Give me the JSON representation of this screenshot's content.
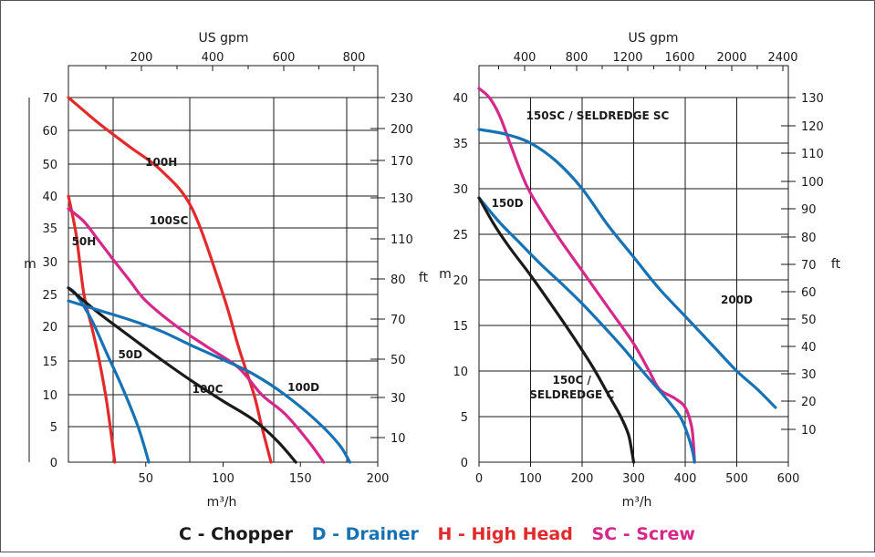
{
  "colors": {
    "chopper": "#1a1a1a",
    "drainer": "#1772b5",
    "high_head": "#e22a2a",
    "screw": "#d6278a"
  },
  "legend": [
    {
      "text": "C - Chopper",
      "color": "#1a1a1a"
    },
    {
      "text": "D - Drainer",
      "color": "#1772b5"
    },
    {
      "text": "H - High Head",
      "color": "#e22a2a"
    },
    {
      "text": "SC - Screw",
      "color": "#d6278a"
    }
  ],
  "chart_data": [
    {
      "type": "line",
      "xlabel": "m³/h",
      "x2label": "US gpm",
      "ylabel": "m",
      "y2label": "ft",
      "xlim": [
        0,
        200
      ],
      "ylim": [
        0,
        70
      ],
      "xticks": [
        50,
        100,
        150,
        200
      ],
      "yticks": [
        0,
        5,
        10,
        15,
        20,
        25,
        30,
        35,
        40,
        50,
        60,
        70
      ],
      "x2ticks": [
        200,
        400,
        600,
        800
      ],
      "y2ticks": [
        10,
        30,
        50,
        70,
        80,
        110,
        130,
        170,
        200,
        230
      ],
      "grid": true,
      "series": [
        {
          "name": "100H",
          "color": "#e22a2a",
          "label_at": [
            60,
            0.812
          ],
          "points": [
            [
              0,
              70
            ],
            [
              20,
              62
            ],
            [
              40,
              55
            ],
            [
              60,
              48
            ],
            [
              80,
              38
            ],
            [
              100,
              25
            ],
            [
              110,
              17
            ],
            [
              120,
              10
            ],
            [
              125,
              5
            ],
            [
              131,
              0
            ]
          ]
        },
        {
          "name": "50H",
          "color": "#e22a2a",
          "label_at": [
            10,
            0.595
          ],
          "points": [
            [
              0,
              40
            ],
            [
              5,
              34
            ],
            [
              10,
              25
            ],
            [
              15,
              20
            ],
            [
              20,
              15
            ],
            [
              24,
              10
            ],
            [
              27,
              5
            ],
            [
              30,
              0
            ]
          ]
        },
        {
          "name": "100SC",
          "color": "#d6278a",
          "label_at": [
            65,
            0.653
          ],
          "points": [
            [
              0,
              38
            ],
            [
              10,
              36
            ],
            [
              20,
              33
            ],
            [
              30,
              30
            ],
            [
              40,
              27
            ],
            [
              50,
              24
            ],
            [
              70,
              20
            ],
            [
              90,
              17
            ],
            [
              110,
              14
            ],
            [
              125,
              10
            ],
            [
              140,
              7
            ],
            [
              155,
              3
            ],
            [
              165,
              0
            ]
          ]
        },
        {
          "name": "50D",
          "color": "#1772b5",
          "label_at": [
            40,
            0.285
          ],
          "points": [
            [
              0,
              26
            ],
            [
              5,
              25
            ],
            [
              15,
              21
            ],
            [
              25,
              16
            ],
            [
              35,
              11
            ],
            [
              45,
              5
            ],
            [
              52,
              0
            ]
          ]
        },
        {
          "name": "100C",
          "color": "#1a1a1a",
          "label_at": [
            90,
            0.19
          ],
          "points": [
            [
              0,
              26
            ],
            [
              10,
              24
            ],
            [
              20,
              22
            ],
            [
              40,
              18.5
            ],
            [
              60,
              15.2
            ],
            [
              80,
              12
            ],
            [
              100,
              9
            ],
            [
              120,
              6
            ],
            [
              135,
              3
            ],
            [
              147,
              0
            ]
          ]
        },
        {
          "name": "100D",
          "color": "#1772b5",
          "label_at": [
            152,
            0.195
          ],
          "points": [
            [
              0,
              24
            ],
            [
              20,
              22.5
            ],
            [
              40,
              21
            ],
            [
              60,
              19.3
            ],
            [
              80,
              17.2
            ],
            [
              100,
              15.2
            ],
            [
              120,
              13
            ],
            [
              140,
              10
            ],
            [
              160,
              6
            ],
            [
              175,
              2.5
            ],
            [
              182,
              0
            ]
          ]
        }
      ]
    },
    {
      "type": "line",
      "xlabel": "m³/h",
      "x2label": "US gpm",
      "ylabel": "m",
      "y2label": "ft",
      "xlim": [
        0,
        600
      ],
      "ylim": [
        0,
        40
      ],
      "xticks": [
        0,
        100,
        200,
        300,
        400,
        500,
        600
      ],
      "yticks": [
        0,
        5,
        10,
        15,
        20,
        25,
        30,
        35,
        40
      ],
      "x2ticks": [
        400,
        800,
        1200,
        1600,
        2000,
        2400
      ],
      "y2ticks": [
        10,
        20,
        30,
        40,
        50,
        60,
        70,
        80,
        90,
        100,
        110,
        120,
        130
      ],
      "grid": true,
      "series": [
        {
          "name": "150SC / SELDREDGE SC",
          "color": "#d6278a",
          "label_at": [
            230,
            0.94
          ],
          "points": [
            [
              0,
              41
            ],
            [
              20,
              40
            ],
            [
              40,
              38
            ],
            [
              60,
              35
            ],
            [
              80,
              32
            ],
            [
              100,
              29.5
            ],
            [
              150,
              25
            ],
            [
              200,
              21
            ],
            [
              250,
              17
            ],
            [
              300,
              13
            ],
            [
              330,
              10
            ],
            [
              350,
              8
            ],
            [
              380,
              7
            ],
            [
              400,
              6
            ],
            [
              412,
              4
            ],
            [
              416,
              2
            ],
            [
              418,
              0
            ]
          ]
        },
        {
          "name": "150D",
          "color": "#1772b5",
          "label_at": [
            55,
            0.7
          ],
          "points": [
            [
              0,
              29
            ],
            [
              40,
              26.3
            ],
            [
              80,
              24
            ],
            [
              120,
              21.7
            ],
            [
              160,
              19.6
            ],
            [
              200,
              17.4
            ],
            [
              240,
              15
            ],
            [
              280,
              12.5
            ],
            [
              320,
              9.8
            ],
            [
              360,
              7.2
            ],
            [
              390,
              5
            ],
            [
              405,
              3
            ],
            [
              415,
              1
            ],
            [
              418,
              0
            ]
          ]
        },
        {
          "name": "150C / SELDREDGE C",
          "color": "#1a1a1a",
          "label_at": [
            180,
            0.215
          ],
          "points": [
            [
              0,
              29
            ],
            [
              30,
              26
            ],
            [
              60,
              23.5
            ],
            [
              100,
              20.5
            ],
            [
              140,
              17.3
            ],
            [
              180,
              14
            ],
            [
              220,
              10.5
            ],
            [
              250,
              7.5
            ],
            [
              275,
              5
            ],
            [
              290,
              3
            ],
            [
              297,
              1
            ],
            [
              300,
              0
            ]
          ]
        },
        {
          "name": "200D",
          "color": "#1772b5",
          "label_at": [
            500,
            0.435
          ],
          "points": [
            [
              0,
              36.5
            ],
            [
              50,
              36
            ],
            [
              100,
              35
            ],
            [
              150,
              33
            ],
            [
              200,
              30
            ],
            [
              250,
              26
            ],
            [
              300,
              22.5
            ],
            [
              350,
              19
            ],
            [
              400,
              16
            ],
            [
              450,
              13
            ],
            [
              500,
              10
            ],
            [
              540,
              8
            ],
            [
              575,
              6
            ]
          ]
        }
      ]
    }
  ]
}
